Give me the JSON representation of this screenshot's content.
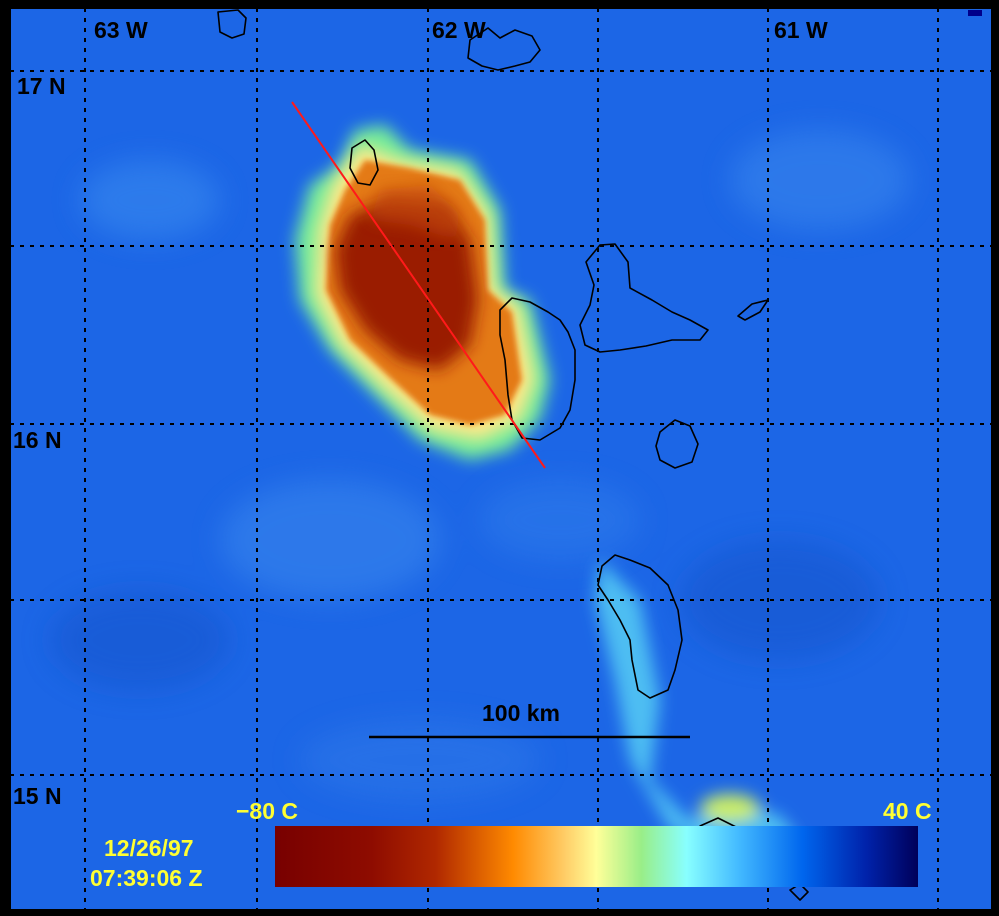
{
  "map": {
    "longitude_labels": [
      "63 W",
      "62 W",
      "61 W"
    ],
    "latitude_labels": [
      "17 N",
      "16 N",
      "15 N"
    ],
    "scale_bar": {
      "label": "100 km"
    },
    "colorbar": {
      "min_label": "−80 C",
      "max_label": "40 C",
      "colors": [
        "#7a0000",
        "#9a1a00",
        "#d24a00",
        "#ff8c00",
        "#ffcc66",
        "#ffff99",
        "#88ee88",
        "#88ffff",
        "#33aaff",
        "#0044dd",
        "#00005a"
      ]
    },
    "timestamp": {
      "date": "12/26/97",
      "time": "07:39:06 Z"
    },
    "colors": {
      "background_sea": "#1c66e6",
      "cloud_core": "#9a1c00",
      "cloud_mid": "#e07a10",
      "cloud_edge": "#ffee88",
      "halo": "#66ee99",
      "coast": "#000000",
      "transect": "#ff1a1a",
      "grid": "#000000",
      "label_yellow": "#ffff33"
    },
    "icons": [
      "island-outlines",
      "transect-line",
      "grid-lines"
    ]
  }
}
